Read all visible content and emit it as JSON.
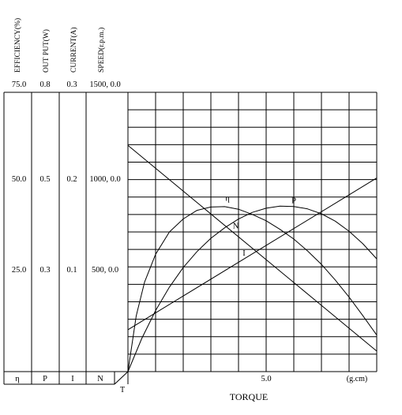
{
  "chart_data": {
    "type": "line",
    "xlabel": "TORQUE",
    "x_unit": "(g.cm)",
    "x_tick_labels": [
      {
        "value": 5.0,
        "label": "5.0"
      }
    ],
    "xlim": [
      0,
      9
    ],
    "origin_label": "T",
    "axes": [
      {
        "key": "efficiency",
        "label": "EFFICIENCY(%)",
        "symbol": "η",
        "ticks": [
          "75.0",
          "50.0",
          "25.0"
        ],
        "range": [
          0,
          75
        ]
      },
      {
        "key": "output",
        "label": "OUT PUT(W)",
        "symbol": "P",
        "ticks": [
          "0.8",
          "0.5",
          "0.3"
        ],
        "range": [
          0,
          0.8
        ]
      },
      {
        "key": "current",
        "label": "CURRENT(A)",
        "symbol": "I",
        "ticks": [
          "0.3",
          "0.2",
          "0.1"
        ],
        "range": [
          0,
          0.3
        ]
      },
      {
        "key": "speed",
        "label": "SPEED(r.p.m.)",
        "symbol": "N",
        "ticks": [
          "1500, 0.0",
          "1000, 0.0",
          "500, 0.0"
        ],
        "range": [
          0,
          1500
        ]
      }
    ],
    "grid": true,
    "series": [
      {
        "name": "η",
        "axis": "efficiency",
        "x": [
          0,
          0.3,
          0.6,
          1.0,
          1.5,
          2.0,
          2.5,
          3.0,
          3.5,
          4.0,
          4.5,
          5.0,
          5.5,
          6.0,
          6.5,
          7.0,
          7.5,
          8.0,
          8.5,
          9.0
        ],
        "y": [
          0,
          15.0,
          24.0,
          31.5,
          37.5,
          41.0,
          43.3,
          44.2,
          44.3,
          43.6,
          42.2,
          40.5,
          38.2,
          35.6,
          32.4,
          28.8,
          24.6,
          20.0,
          15.0,
          9.8
        ]
      },
      {
        "name": "N",
        "axis": "speed",
        "x": [
          0,
          9
        ],
        "y": [
          1215,
          110
        ]
      },
      {
        "name": "P",
        "axis": "output",
        "x": [
          0,
          0.5,
          1.0,
          1.5,
          2.0,
          2.5,
          3.0,
          3.5,
          4.0,
          4.5,
          5.0,
          5.5,
          6.0,
          6.5,
          7.0,
          7.5,
          8.0,
          8.5,
          9.0
        ],
        "y": [
          0,
          0.095,
          0.175,
          0.242,
          0.298,
          0.344,
          0.382,
          0.412,
          0.437,
          0.456,
          0.468,
          0.474,
          0.473,
          0.466,
          0.452,
          0.431,
          0.402,
          0.366,
          0.323
        ]
      },
      {
        "name": "I",
        "axis": "current",
        "x": [
          0,
          9
        ],
        "y": [
          0.045,
          0.208
        ]
      }
    ]
  }
}
